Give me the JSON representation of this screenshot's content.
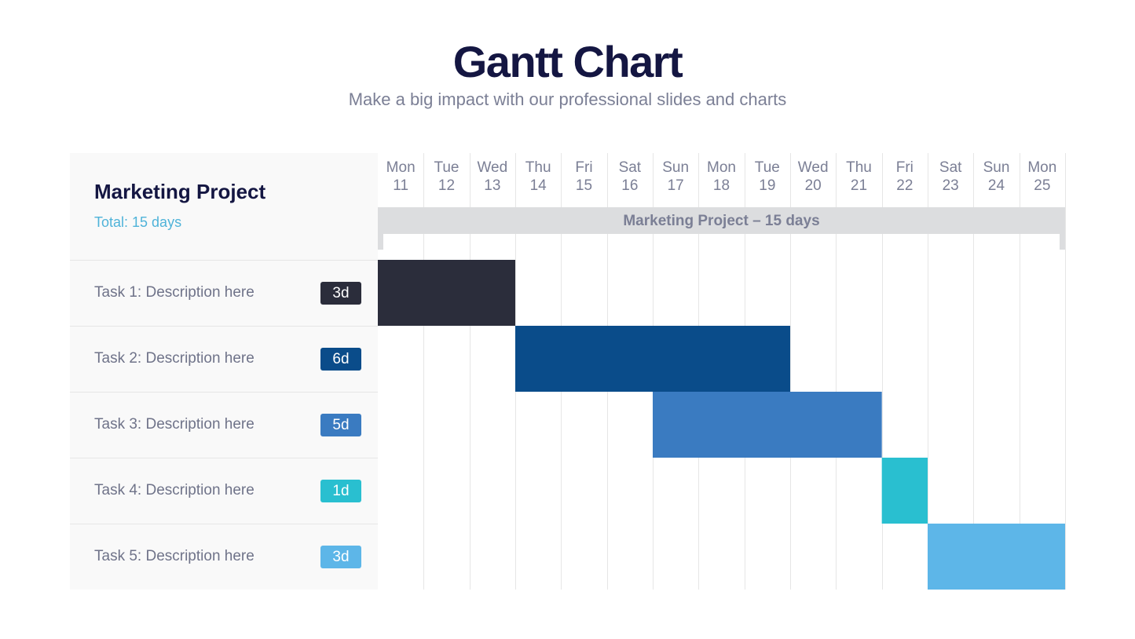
{
  "title": "Gantt Chart",
  "subtitle": "Make a big impact with our professional slides and charts",
  "chart_data": {
    "type": "gantt",
    "project": {
      "name": "Marketing Project",
      "total": "Total: 15 days",
      "span_label": "Marketing Project – 15 days"
    },
    "days": [
      {
        "weekday": "Mon",
        "date": "11"
      },
      {
        "weekday": "Tue",
        "date": "12"
      },
      {
        "weekday": "Wed",
        "date": "13"
      },
      {
        "weekday": "Thu",
        "date": "14"
      },
      {
        "weekday": "Fri",
        "date": "15"
      },
      {
        "weekday": "Sat",
        "date": "16"
      },
      {
        "weekday": "Sun",
        "date": "17"
      },
      {
        "weekday": "Mon",
        "date": "18"
      },
      {
        "weekday": "Tue",
        "date": "19"
      },
      {
        "weekday": "Wed",
        "date": "20"
      },
      {
        "weekday": "Thu",
        "date": "21"
      },
      {
        "weekday": "Fri",
        "date": "22"
      },
      {
        "weekday": "Sat",
        "date": "23"
      },
      {
        "weekday": "Sun",
        "date": "24"
      },
      {
        "weekday": "Mon",
        "date": "25"
      }
    ],
    "tasks": [
      {
        "label": "Task 1: Description here",
        "duration": "3d",
        "start_day": "11",
        "end_day": "13",
        "color": "#2b2d3b"
      },
      {
        "label": "Task 2: Description here",
        "duration": "6d",
        "start_day": "14",
        "end_day": "19",
        "color": "#0a4c8a"
      },
      {
        "label": "Task 3: Description here",
        "duration": "5d",
        "start_day": "17",
        "end_day": "21",
        "color": "#3a7bc1"
      },
      {
        "label": "Task 4: Description here",
        "duration": "1d",
        "start_day": "22",
        "end_day": "22",
        "color": "#29bfd0"
      },
      {
        "label": "Task 5: Description here",
        "duration": "3d",
        "start_day": "23",
        "end_day": "25",
        "color": "#5db6e8"
      }
    ],
    "colors": {
      "grid": "#e6e6e6",
      "span_bar": "#dcdddf"
    }
  }
}
